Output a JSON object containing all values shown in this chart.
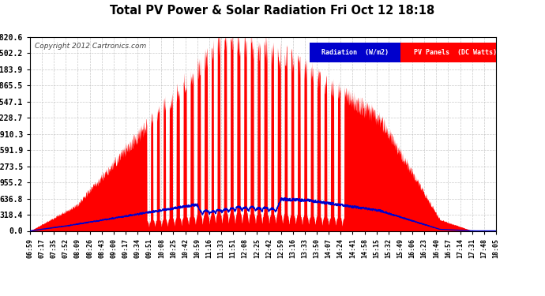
{
  "title": "Total PV Power & Solar Radiation Fri Oct 12 18:18",
  "copyright": "Copyright 2012 Cartronics.com",
  "background_color": "#ffffff",
  "plot_bg_color": "#ffffff",
  "grid_color": "#bbbbbb",
  "pv_color": "#ff0000",
  "radiation_color": "#0000cc",
  "yticks": [
    0.0,
    318.4,
    636.8,
    955.2,
    1273.5,
    1591.9,
    1910.3,
    2228.7,
    2547.1,
    2865.5,
    3183.9,
    3502.2,
    3820.6
  ],
  "ymax": 3820.6,
  "legend_radiation_bg": "#0000cc",
  "legend_pv_bg": "#ff0000",
  "x_labels": [
    "06:59",
    "07:17",
    "07:35",
    "07:52",
    "08:09",
    "08:26",
    "08:43",
    "09:00",
    "09:17",
    "09:34",
    "09:51",
    "10:08",
    "10:25",
    "10:42",
    "10:59",
    "11:16",
    "11:33",
    "11:51",
    "12:08",
    "12:25",
    "12:42",
    "12:59",
    "13:16",
    "13:33",
    "13:50",
    "14:07",
    "14:24",
    "14:41",
    "14:58",
    "15:15",
    "15:32",
    "15:49",
    "16:06",
    "16:23",
    "16:40",
    "16:57",
    "17:14",
    "17:31",
    "17:48",
    "18:05"
  ]
}
